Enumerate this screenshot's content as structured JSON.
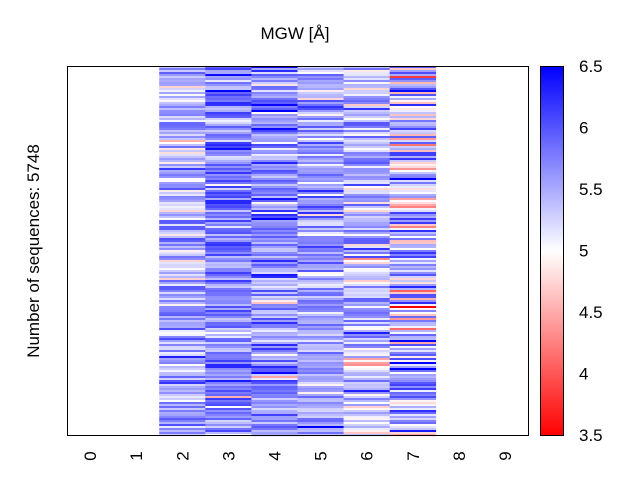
{
  "chart_data": {
    "type": "heatmap",
    "title": "MGW [Å]",
    "xlabel": "",
    "ylabel": "Number of sequences: 5748",
    "x_ticks": [
      "0",
      "1",
      "2",
      "3",
      "4",
      "5",
      "6",
      "7",
      "8",
      "9"
    ],
    "n_sequences": 5748,
    "data_columns": [
      "2",
      "3",
      "4",
      "5",
      "6",
      "7"
    ],
    "column_profiles": [
      {
        "column": "2",
        "mean": 5.45,
        "spread": 0.35
      },
      {
        "column": "3",
        "mean": 5.75,
        "spread": 0.35
      },
      {
        "column": "4",
        "mean": 5.65,
        "spread": 0.35
      },
      {
        "column": "5",
        "mean": 5.55,
        "spread": 0.3
      },
      {
        "column": "6",
        "mean": 5.35,
        "spread": 0.4
      },
      {
        "column": "7",
        "mean": 5.4,
        "spread": 0.55
      }
    ],
    "colorbar": {
      "range": [
        3.5,
        6.5
      ],
      "ticks": [
        "3.5",
        "4",
        "4.5",
        "5",
        "5.5",
        "6",
        "6.5"
      ],
      "colormap": "bwr",
      "low_color": "#ff0000",
      "mid_color": "#ffffff",
      "high_color": "#0000ff"
    }
  }
}
